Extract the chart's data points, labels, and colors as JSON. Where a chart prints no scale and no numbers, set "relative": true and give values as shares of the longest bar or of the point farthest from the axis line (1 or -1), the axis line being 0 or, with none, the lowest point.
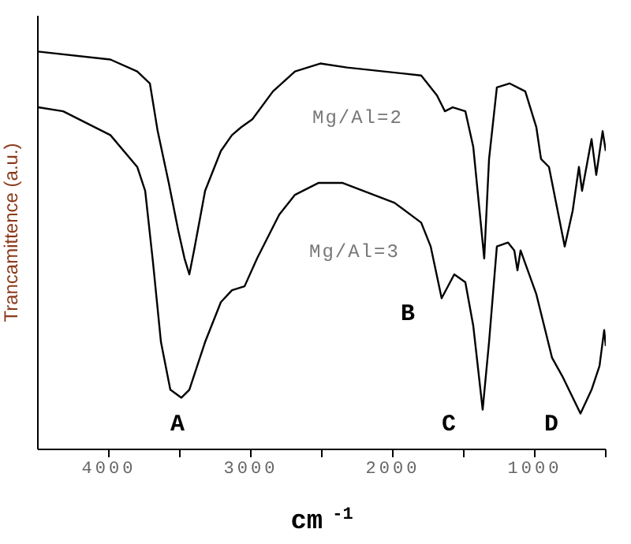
{
  "chart_data": {
    "type": "line",
    "relative": true,
    "xlabel": "cm$^{-1}$",
    "ylabel": "Trancamittence (a.u.)",
    "xlim": [
      4500,
      500
    ],
    "xticks": [
      4000,
      {
        "value": 3500,
        "label": null
      },
      3000,
      {
        "value": 2500,
        "label": null
      },
      2000,
      {
        "value": 1500,
        "label": null
      },
      1000,
      {
        "value": 500,
        "label": null
      }
    ],
    "marker": "none",
    "line_style": "solid",
    "annotations": [
      "A",
      "B",
      "C",
      "D"
    ],
    "series": [
      {
        "name": "Mg/Al=2",
        "color": "#000000",
        "x": [
          4500,
          3989,
          3800,
          3711,
          3656,
          3578,
          3511,
          3467,
          3433,
          3400,
          3322,
          3211,
          3133,
          3067,
          2989,
          2844,
          2689,
          2511,
          2322,
          1800,
          1689,
          1633,
          1578,
          1489,
          1433,
          1356,
          1322,
          1267,
          1178,
          1067,
          989,
          956,
          900,
          789,
          733,
          689,
          667,
          600,
          567,
          522,
          500
        ],
        "values": [
          1.0,
          0.98,
          0.95,
          0.92,
          0.8,
          0.67,
          0.55,
          0.48,
          0.44,
          0.5,
          0.65,
          0.75,
          0.79,
          0.81,
          0.83,
          0.9,
          0.95,
          0.97,
          0.96,
          0.94,
          0.89,
          0.85,
          0.86,
          0.85,
          0.76,
          0.48,
          0.73,
          0.91,
          0.92,
          0.9,
          0.81,
          0.73,
          0.71,
          0.51,
          0.6,
          0.71,
          0.65,
          0.78,
          0.69,
          0.8,
          0.75
        ]
      },
      {
        "name": "Mg/Al=3",
        "color": "#000000",
        "x": [
          4500,
          4322,
          3989,
          3800,
          3744,
          3689,
          3633,
          3567,
          3489,
          3433,
          3322,
          3211,
          3133,
          3044,
          2956,
          2800,
          2689,
          2522,
          2356,
          1989,
          1800,
          1733,
          1656,
          1567,
          1489,
          1433,
          1367,
          1322,
          1267,
          1189,
          1144,
          1122,
          1100,
          989,
          878,
          800,
          678,
          600,
          544,
          511,
          500
        ],
        "values": [
          0.86,
          0.85,
          0.79,
          0.71,
          0.65,
          0.47,
          0.27,
          0.15,
          0.13,
          0.15,
          0.27,
          0.37,
          0.4,
          0.41,
          0.48,
          0.59,
          0.64,
          0.67,
          0.67,
          0.62,
          0.57,
          0.51,
          0.38,
          0.44,
          0.42,
          0.31,
          0.1,
          0.27,
          0.51,
          0.52,
          0.5,
          0.45,
          0.5,
          0.39,
          0.23,
          0.18,
          0.09,
          0.15,
          0.21,
          0.3,
          0.26
        ]
      }
    ]
  }
}
